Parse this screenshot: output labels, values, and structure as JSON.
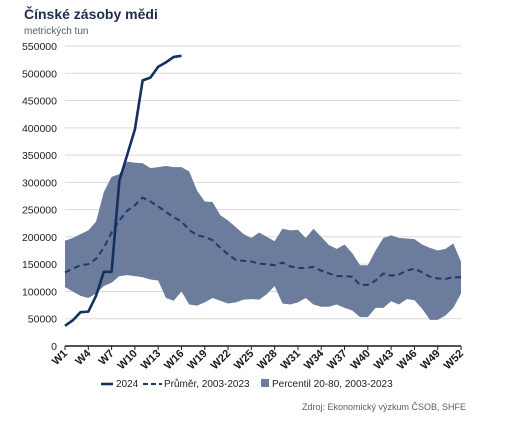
{
  "chart_data": {
    "type": "line",
    "title": "Čínské zásoby mědi",
    "subtitle": "metrických tun",
    "source": "Zdroj: Ekonomický výzkum ČSOB, SHFE",
    "ylim": [
      0,
      550000
    ],
    "yticks": [
      0,
      50000,
      100000,
      150000,
      200000,
      250000,
      300000,
      350000,
      400000,
      450000,
      500000,
      550000
    ],
    "ytick_labels": [
      "0",
      "50000",
      "100000",
      "150000",
      "200000",
      "250000",
      "300000",
      "350000",
      "400000",
      "450000",
      "500000",
      "550000"
    ],
    "xlim": [
      1,
      52
    ],
    "xticks": [
      1,
      4,
      7,
      10,
      13,
      16,
      19,
      22,
      25,
      28,
      31,
      34,
      37,
      40,
      43,
      46,
      49,
      52
    ],
    "xtick_labels": [
      "W1",
      "W4",
      "W7",
      "W10",
      "W13",
      "W16",
      "W19",
      "W22",
      "W25",
      "W28",
      "W31",
      "W34",
      "W37",
      "W40",
      "W43",
      "W46",
      "W49",
      "W52"
    ],
    "grid": "horizontal",
    "legend_position": "bottom",
    "colors": {
      "line_2024": "#13305e",
      "average": "#1b3a6e",
      "band": "#6b7c9c"
    },
    "series": [
      {
        "name": "2024",
        "style": "solid",
        "x": [
          1,
          2,
          3,
          4,
          5,
          6,
          7,
          8,
          9,
          10,
          11,
          12,
          13,
          14,
          15,
          16
        ],
        "values": [
          37000,
          47000,
          62000,
          63000,
          92000,
          136000,
          136000,
          303000,
          350000,
          397000,
          487000,
          492000,
          512000,
          520000,
          530000,
          532000
        ]
      },
      {
        "name": "Průměr, 2003-2023",
        "style": "dashed",
        "x": [
          1,
          2,
          3,
          4,
          5,
          6,
          7,
          8,
          9,
          10,
          11,
          12,
          13,
          14,
          15,
          16,
          17,
          18,
          19,
          20,
          21,
          22,
          23,
          24,
          25,
          26,
          27,
          28,
          29,
          30,
          31,
          32,
          33,
          34,
          35,
          36,
          37,
          38,
          39,
          40,
          41,
          42,
          43,
          44,
          45,
          46,
          47,
          48,
          49,
          50,
          51,
          52
        ],
        "values": [
          135000,
          142000,
          148000,
          150000,
          160000,
          180000,
          208000,
          230000,
          248000,
          258000,
          272000,
          265000,
          256000,
          246000,
          236000,
          228000,
          213000,
          203000,
          200000,
          194000,
          180000,
          168000,
          158000,
          156000,
          155000,
          151000,
          150000,
          148000,
          153000,
          146000,
          143000,
          143000,
          145000,
          138000,
          133000,
          128000,
          128000,
          127000,
          112000,
          112000,
          120000,
          133000,
          129000,
          131000,
          138000,
          142000,
          135000,
          127000,
          124000,
          123000,
          126000,
          126000
        ]
      },
      {
        "name": "Percentil 20-80, 2003-2023",
        "style": "band",
        "x": [
          1,
          2,
          3,
          4,
          5,
          6,
          7,
          8,
          9,
          10,
          11,
          12,
          13,
          14,
          15,
          16,
          17,
          18,
          19,
          20,
          21,
          22,
          23,
          24,
          25,
          26,
          27,
          28,
          29,
          30,
          31,
          32,
          33,
          34,
          35,
          36,
          37,
          38,
          39,
          40,
          41,
          42,
          43,
          44,
          45,
          46,
          47,
          48,
          49,
          50,
          51,
          52
        ],
        "lower": [
          108000,
          100000,
          92000,
          88000,
          96000,
          110000,
          116000,
          128000,
          130000,
          128000,
          126000,
          122000,
          120000,
          88000,
          83000,
          100000,
          76000,
          74000,
          80000,
          88000,
          83000,
          78000,
          80000,
          85000,
          86000,
          85000,
          95000,
          110000,
          78000,
          76000,
          80000,
          88000,
          76000,
          72000,
          72000,
          76000,
          70000,
          65000,
          53000,
          53000,
          70000,
          70000,
          82000,
          76000,
          86000,
          84000,
          68000,
          48000,
          48000,
          56000,
          70000,
          96000
        ],
        "upper": [
          193000,
          198000,
          205000,
          212000,
          228000,
          282000,
          310000,
          315000,
          338000,
          336000,
          335000,
          326000,
          328000,
          330000,
          328000,
          328000,
          320000,
          285000,
          265000,
          264000,
          240000,
          230000,
          218000,
          205000,
          198000,
          208000,
          200000,
          192000,
          215000,
          212000,
          213000,
          198000,
          215000,
          200000,
          185000,
          178000,
          186000,
          170000,
          148000,
          148000,
          175000,
          198000,
          203000,
          198000,
          197000,
          196000,
          186000,
          180000,
          175000,
          178000,
          188000,
          155000
        ]
      }
    ]
  }
}
